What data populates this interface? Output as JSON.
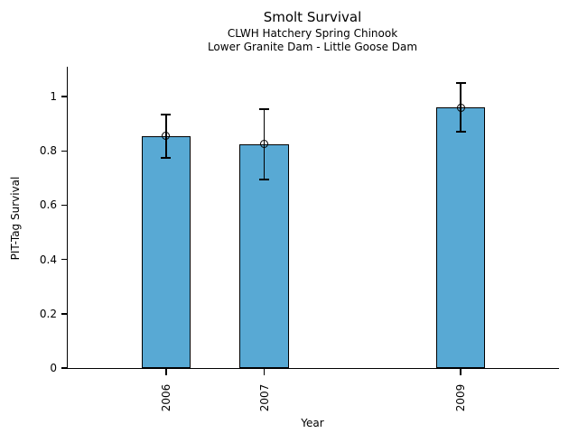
{
  "chart_data": {
    "type": "bar",
    "title": "Smolt Survival",
    "subtitle1": "CLWH Hatchery Spring Chinook",
    "subtitle2": "Lower Granite Dam - Little Goose Dam",
    "xlabel": "Year",
    "ylabel": "PIT-Tag Survival",
    "categories": [
      "2006",
      "2007",
      "2009"
    ],
    "x_positions": [
      2006,
      2007,
      2009
    ],
    "values": [
      0.855,
      0.825,
      0.96
    ],
    "error_low": [
      0.775,
      0.695,
      0.87
    ],
    "error_high": [
      0.935,
      0.955,
      1.05
    ],
    "xlim": [
      2005,
      2010
    ],
    "ylim": [
      0,
      1.11
    ],
    "yticks": [
      0,
      0.2,
      0.4,
      0.6,
      0.8,
      1
    ],
    "ytick_labels": [
      "0",
      "0.2",
      "0.4",
      "0.6",
      "0.8",
      "1"
    ],
    "bar_width_years": 0.5,
    "bar_color": "#58a9d4",
    "bar_edge_color": "#000000",
    "error_color": "#000000",
    "marker": "open-circle",
    "grid": false,
    "legend": null,
    "background_color": "#ffffff",
    "text_color": "#000000"
  }
}
